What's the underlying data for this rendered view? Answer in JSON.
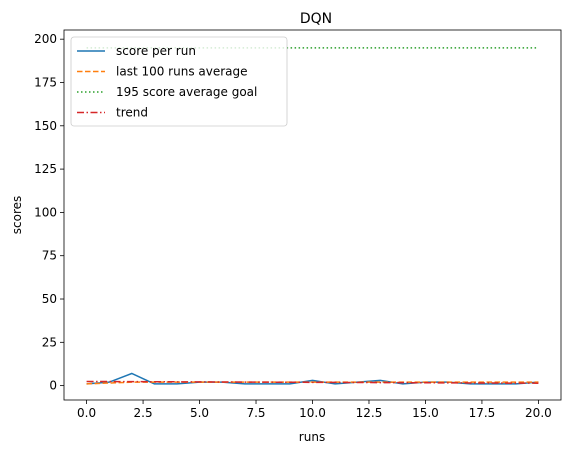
{
  "chart_data": {
    "type": "line",
    "title": "DQN",
    "xlabel": "runs",
    "ylabel": "scores",
    "xlim": [
      -1,
      21
    ],
    "ylim": [
      -8.3,
      205.3
    ],
    "xticks": [
      0.0,
      2.5,
      5.0,
      7.5,
      10.0,
      12.5,
      15.0,
      17.5,
      20.0
    ],
    "xtick_labels": [
      "0.0",
      "2.5",
      "5.0",
      "7.5",
      "10.0",
      "12.5",
      "15.0",
      "17.5",
      "20.0"
    ],
    "yticks": [
      0,
      25,
      50,
      75,
      100,
      125,
      150,
      175,
      200
    ],
    "ytick_labels": [
      "0",
      "25",
      "50",
      "75",
      "100",
      "125",
      "150",
      "175",
      "200"
    ],
    "grid": false,
    "legend_position": "top-left",
    "series": [
      {
        "name": "score per run",
        "color": "#1f77b4",
        "style": "solid",
        "x": [
          0,
          1,
          2,
          3,
          4,
          5,
          6,
          7,
          8,
          9,
          10,
          11,
          12,
          13,
          14,
          15,
          16,
          17,
          18,
          19,
          20
        ],
        "y": [
          1,
          2,
          7,
          1,
          1,
          2,
          2,
          1,
          1,
          1,
          3,
          1,
          2,
          3,
          1,
          2,
          2,
          1,
          1,
          1,
          2
        ]
      },
      {
        "name": "last 100 runs average",
        "color": "#ff7f0e",
        "style": "dashed",
        "x": [
          0,
          1,
          2,
          3,
          4,
          5,
          6,
          7,
          8,
          9,
          10,
          11,
          12,
          13,
          14,
          15,
          16,
          17,
          18,
          19,
          20
        ],
        "y": [
          1.0,
          1.5,
          2.0,
          2.0,
          2.0,
          2.0,
          2.0,
          2.0,
          2.0,
          2.0,
          2.0,
          2.0,
          2.0,
          2.0,
          2.0,
          2.0,
          2.0,
          2.0,
          2.0,
          2.0,
          2.0
        ]
      },
      {
        "name": "195 score average goal",
        "color": "#2ca02c",
        "style": "dotted",
        "x": [
          0,
          20
        ],
        "y": [
          195,
          195
        ]
      },
      {
        "name": "trend",
        "color": "#d62728",
        "style": "dashdot",
        "x": [
          0,
          20
        ],
        "y": [
          2.4,
          1.4
        ]
      }
    ]
  }
}
